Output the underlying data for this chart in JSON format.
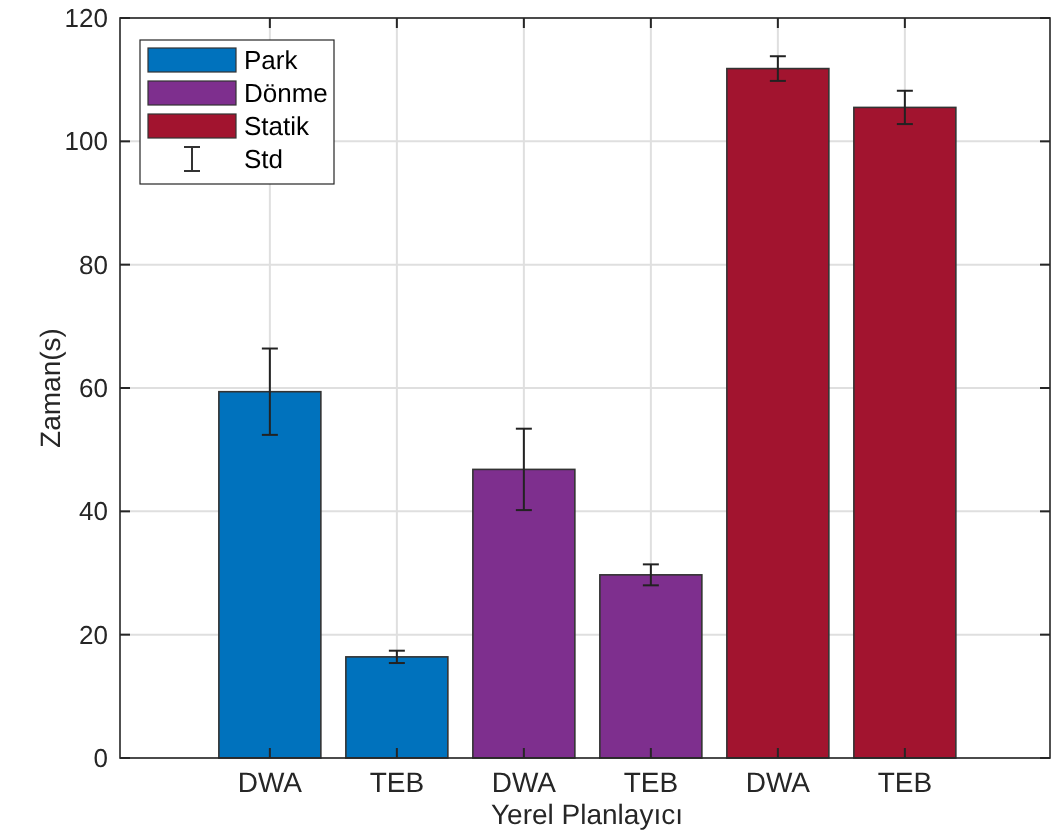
{
  "chart_data": {
    "type": "bar",
    "xlabel": "Yerel Planlayıcı",
    "ylabel": "Zaman(s)",
    "categories": [
      "DWA",
      "TEB",
      "DWA",
      "TEB",
      "DWA",
      "TEB"
    ],
    "series": [
      {
        "name": "Park",
        "color": "#0072bd",
        "values": [
          59.4,
          16.4,
          null,
          null,
          null,
          null
        ],
        "errors": [
          7,
          1,
          null,
          null,
          null,
          null
        ]
      },
      {
        "name": "Dönme",
        "color": "#7e2f8e",
        "values": [
          null,
          null,
          46.8,
          29.7,
          null,
          null
        ],
        "errors": [
          null,
          null,
          6.6,
          1.7,
          null,
          null
        ]
      },
      {
        "name": "Statik",
        "color": "#a2142f",
        "values": [
          null,
          null,
          null,
          null,
          111.8,
          105.5
        ],
        "errors": [
          null,
          null,
          null,
          null,
          2,
          2.7
        ]
      }
    ],
    "ylim": [
      0,
      120
    ],
    "yticks": [
      0,
      20,
      40,
      60,
      80,
      100,
      120
    ],
    "grid": true,
    "legend": "top left",
    "annotations": [
      "Std"
    ]
  }
}
